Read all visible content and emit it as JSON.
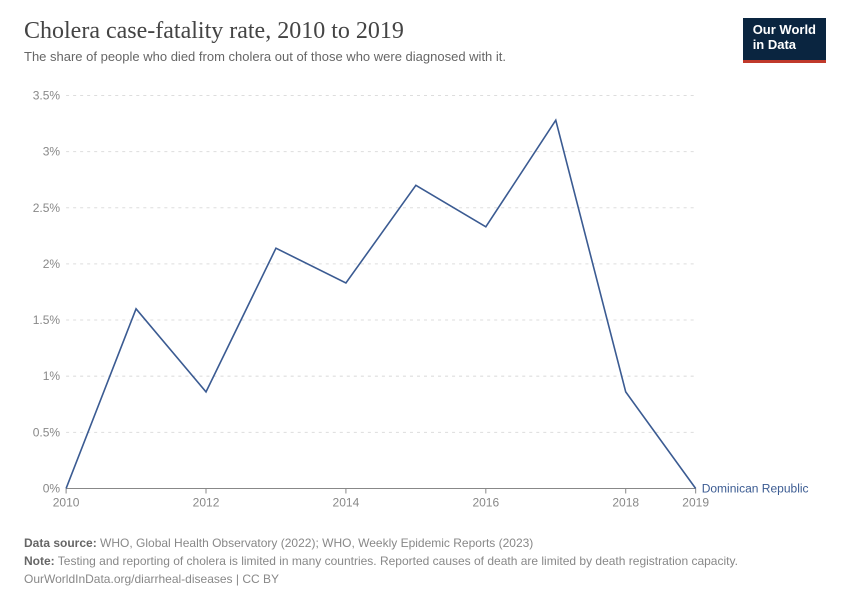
{
  "header": {
    "title": "Cholera case-fatality rate, 2010 to 2019",
    "subtitle": "The share of people who died from cholera out of those who were diagnosed with it.",
    "logo_line1": "Our World",
    "logo_line2": "in Data"
  },
  "chart": {
    "type": "line",
    "background_color": "#ffffff",
    "grid_color": "#dddddd",
    "axis_color": "#888888",
    "axis_fontsize": 12,
    "x": {
      "min": 2010,
      "max": 2019,
      "ticks": [
        2010,
        2012,
        2014,
        2016,
        2018,
        2019
      ]
    },
    "y": {
      "min": 0,
      "max": 3.5,
      "ticks": [
        0,
        0.5,
        1,
        1.5,
        2,
        2.5,
        3,
        3.5
      ],
      "tick_labels": [
        "0%",
        "0.5%",
        "1%",
        "1.5%",
        "2%",
        "2.5%",
        "3%",
        "3.5%"
      ]
    },
    "series": [
      {
        "name": "Dominican Republic",
        "color": "#3b5b92",
        "line_width": 1.6,
        "x": [
          2010,
          2011,
          2012,
          2013,
          2014,
          2015,
          2016,
          2017,
          2018,
          2019
        ],
        "y": [
          0,
          1.6,
          0.86,
          2.14,
          1.83,
          2.7,
          2.33,
          3.28,
          0.86,
          0
        ]
      }
    ]
  },
  "footer": {
    "source_prefix": "Data source:",
    "source_text": " WHO, Global Health Observatory (2022); WHO, Weekly Epidemic Reports (2023)",
    "note_prefix": "Note:",
    "note_text": " Testing and reporting of cholera is limited in many countries. Reported causes of death are limited by death registration capacity.",
    "attribution": "OurWorldInData.org/diarrheal-diseases | CC BY"
  }
}
